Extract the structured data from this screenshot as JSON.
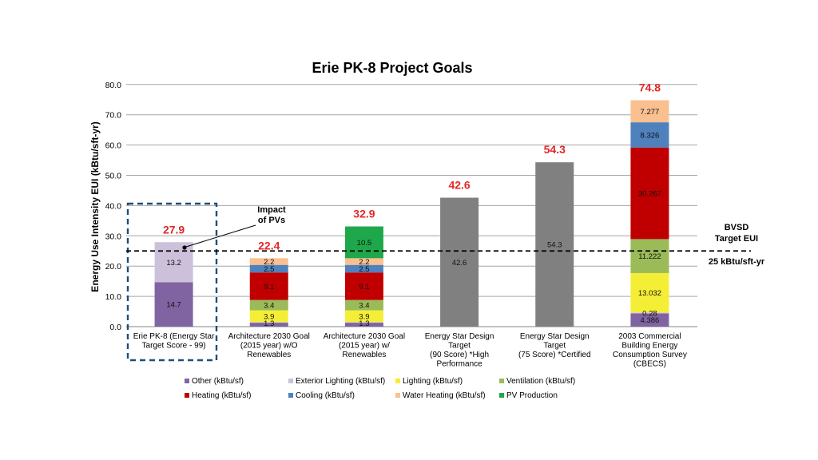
{
  "chart_data": {
    "type": "bar",
    "stacked": true,
    "title": "Erie PK-8 Project Goals",
    "ylabel": "Energy Use Intensity  EUI (kBtu/sft-yr)",
    "ylim": [
      0,
      80
    ],
    "yticks": [
      "0.0",
      "10.0",
      "20.0",
      "30.0",
      "40.0",
      "50.0",
      "60.0",
      "70.0",
      "80.0"
    ],
    "grid": true,
    "legend_position": "bottom",
    "categories": [
      [
        "Erie PK-8 (Energy Star",
        "Target Score - 99)"
      ],
      [
        "Architecture 2030 Goal",
        "(2015 year) w/O",
        "Renewables"
      ],
      [
        "Architecture 2030 Goal",
        "(2015 year) w/",
        "Renewables"
      ],
      [
        "Energy Star Design",
        "Target",
        "(90 Score) *High",
        "Performance"
      ],
      [
        "Energy Star Design",
        "Target",
        "(75 Score) *Certified"
      ],
      [
        "2003 Commercial",
        "Building Energy",
        "Consumption Survey",
        "(CBECS)"
      ]
    ],
    "totals": [
      "27.9",
      "22.4",
      "32.9",
      "42.6",
      "54.3",
      "74.8"
    ],
    "series": [
      {
        "name": "Other (kBtu/sf)",
        "color": "#8064a2",
        "values": [
          14.7,
          1.3,
          1.3,
          null,
          null,
          4.386
        ],
        "labels": [
          "14.7",
          "1.3",
          "1.3",
          "",
          "",
          "4.386"
        ]
      },
      {
        "name": "Exterior Lighting (kBtu/sf)",
        "color": "#ccc0da",
        "values": [
          13.2,
          0.2,
          0.2,
          null,
          null,
          0.28
        ],
        "labels": [
          "13.2",
          "",
          "",
          "",
          "",
          "0.28"
        ]
      },
      {
        "name": "Lighting (kBtu/sf)",
        "color": "#f5ee37",
        "values": [
          null,
          3.9,
          3.9,
          null,
          null,
          13.032
        ],
        "labels": [
          "",
          "3.9",
          "3.9",
          "",
          "",
          "13.032"
        ]
      },
      {
        "name": "Ventilation (kBtu/sf)",
        "color": "#9bbb59",
        "values": [
          null,
          3.4,
          3.4,
          null,
          null,
          11.222
        ],
        "labels": [
          "",
          "3.4",
          "3.4",
          "",
          "",
          "11.222"
        ]
      },
      {
        "name": "Heating (kBtu/sf)",
        "color": "#c00000",
        "values": [
          null,
          9.1,
          9.1,
          null,
          null,
          30.267
        ],
        "labels": [
          "",
          "9.1",
          "9.1",
          "",
          "",
          "30.267"
        ]
      },
      {
        "name": "Cooling (kBtu/sf)",
        "color": "#4f81bd",
        "values": [
          null,
          2.5,
          2.5,
          null,
          null,
          8.326
        ],
        "labels": [
          "",
          "2.5",
          "2.5",
          "",
          "",
          "8.326"
        ]
      },
      {
        "name": "Water Heating (kBtu/sf)",
        "color": "#fac090",
        "values": [
          null,
          2.2,
          2.2,
          null,
          null,
          7.277
        ],
        "labels": [
          "",
          "2.2",
          "2.2",
          "",
          "",
          "7.277"
        ]
      },
      {
        "name": "PV Production",
        "color": "#1ea84b",
        "values": [
          null,
          null,
          10.5,
          null,
          null,
          null
        ],
        "labels": [
          "",
          "",
          "10.5",
          "",
          "",
          ""
        ]
      },
      {
        "name": "",
        "color": "#808080",
        "values": [
          null,
          null,
          null,
          42.6,
          54.3,
          null
        ],
        "labels": [
          "",
          "",
          "",
          "42.6",
          "54.3",
          ""
        ]
      }
    ],
    "reference_line": {
      "value": 25,
      "label_lines": [
        "BVSD",
        "Target EUI"
      ],
      "value_label": "25 kBtu/sft-yr"
    },
    "annotation": {
      "label_lines": [
        "Impact",
        "of PVs"
      ]
    },
    "legend_rows": [
      [
        0,
        1,
        2,
        3
      ],
      [
        4,
        5,
        6,
        7
      ]
    ]
  }
}
